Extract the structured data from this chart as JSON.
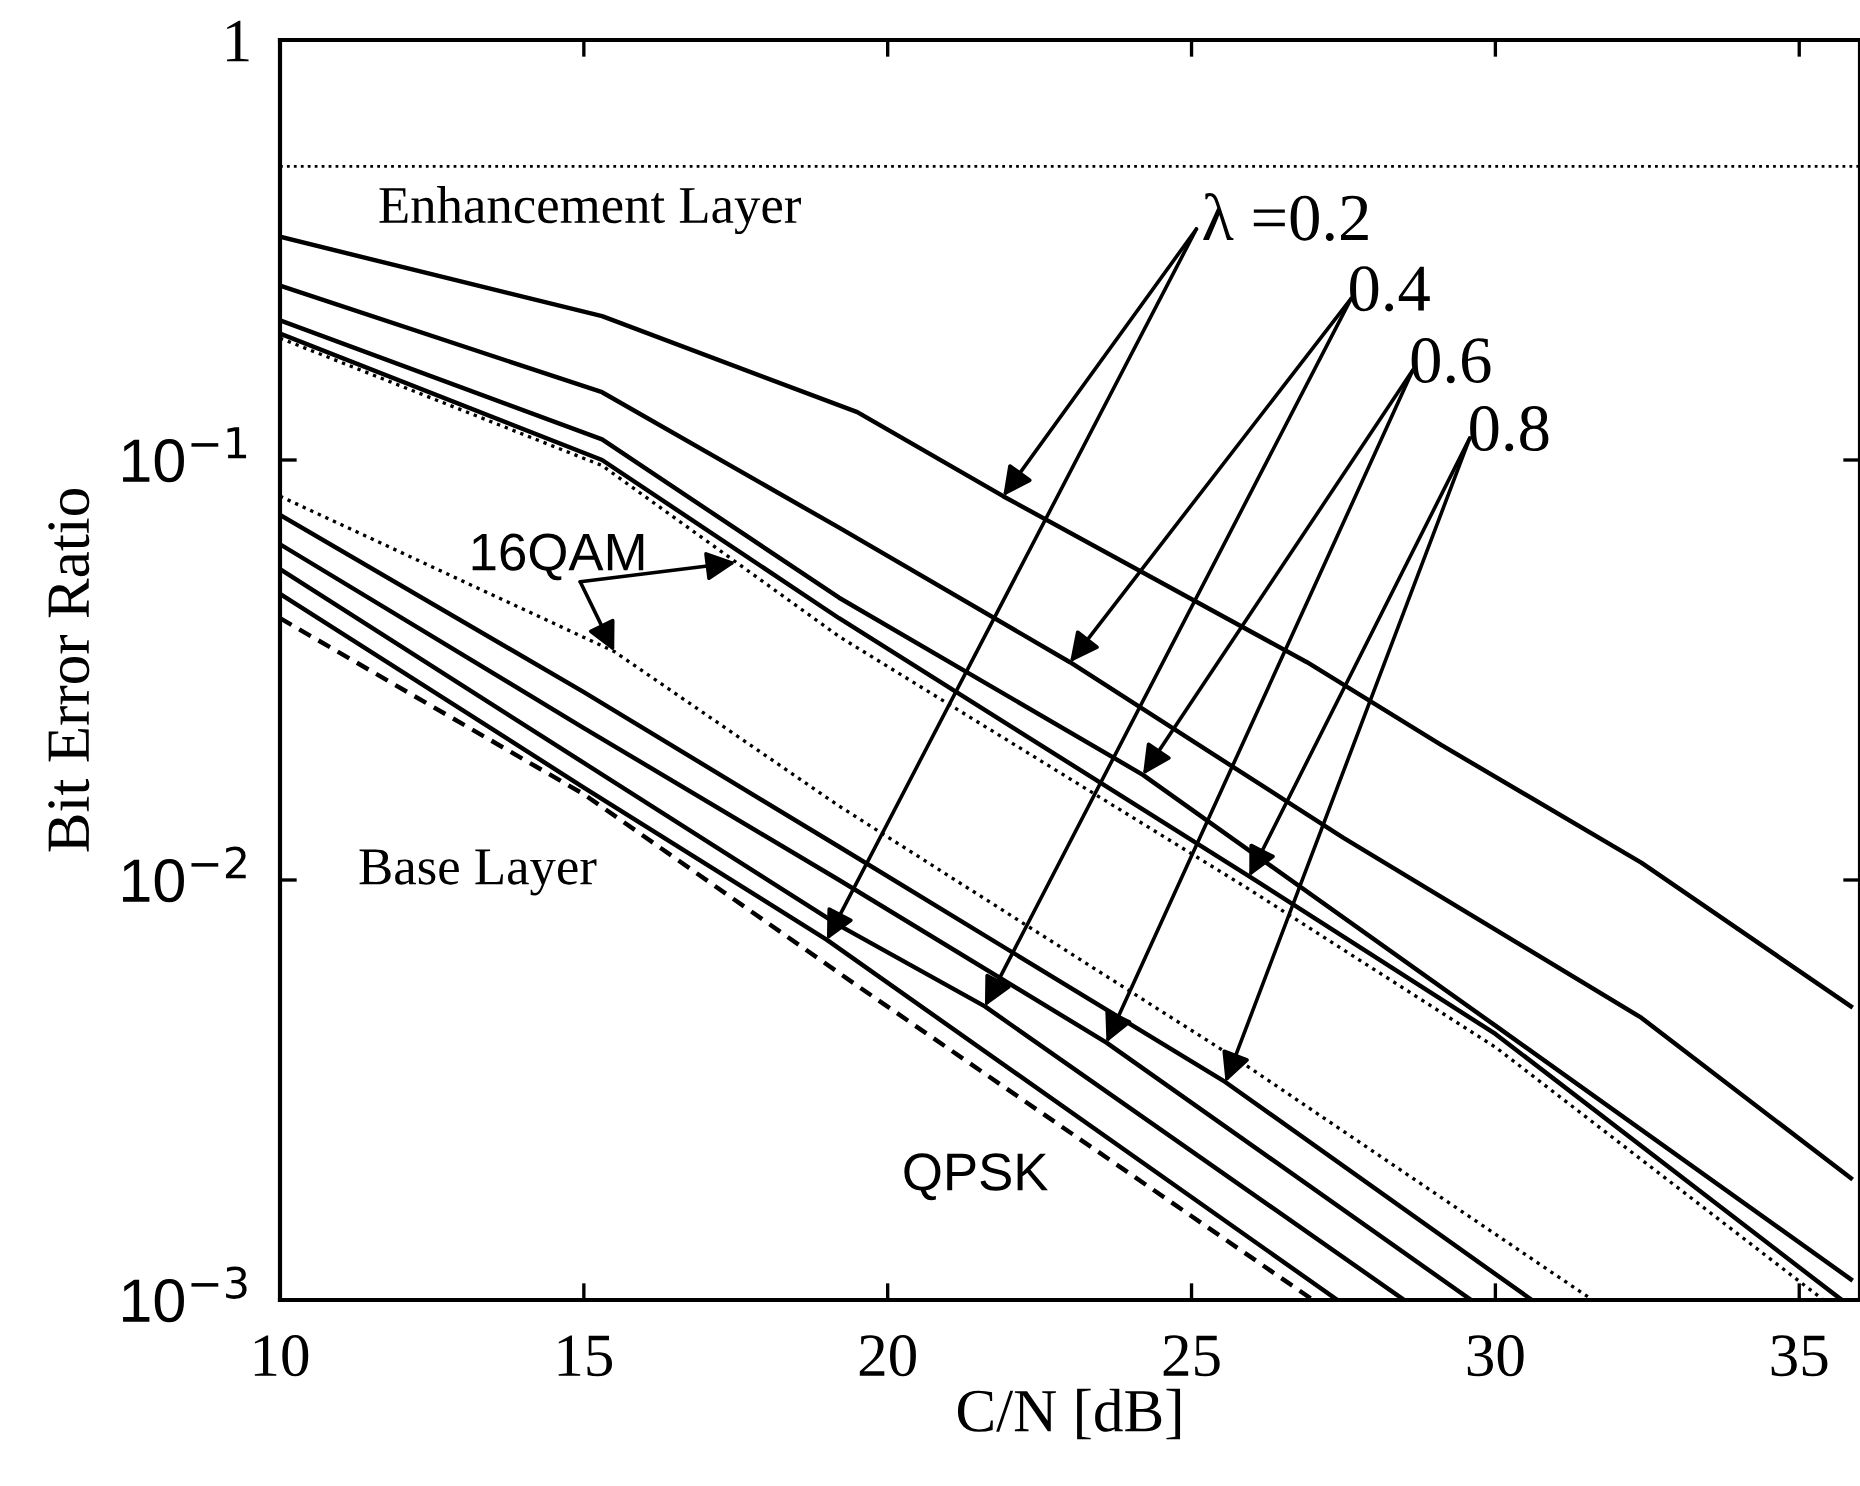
{
  "chart_data": {
    "type": "line",
    "xlabel": "C/N [dB]",
    "ylabel": "Bit Error Ratio",
    "log": "y",
    "xlim": [
      10,
      36
    ],
    "xticks": [
      10,
      15,
      20,
      25,
      30,
      35
    ],
    "ylim": [
      0.001,
      1
    ],
    "yticks": [
      {
        "value": 0.001,
        "label": "10$^{−3}$"
      },
      {
        "value": 0.01,
        "label": "10$^{−2}$"
      },
      {
        "value": 0.1,
        "label": "10$^{−1}$"
      },
      1
    ],
    "grid": false,
    "legend": false,
    "marker": "none",
    "series": [
      {
        "color": "#000000",
        "line_style": "solid",
        "x": [
          10,
          15.3,
          19.5,
          21.9,
          26.9,
          29.1,
          32.4,
          35.85
        ],
        "values": [
          0.34,
          0.22,
          0.13,
          0.082,
          0.033,
          0.021,
          0.011,
          0.005
        ]
      },
      {
        "color": "#000000",
        "line_style": "solid",
        "x": [
          10,
          15.3,
          19.2,
          23,
          27.5,
          32.4,
          35.85
        ],
        "values": [
          0.26,
          0.145,
          0.069,
          0.033,
          0.0126,
          0.0047,
          0.00195
        ]
      },
      {
        "color": "#000000",
        "line_style": "solid",
        "x": [
          10,
          15.3,
          19.2,
          24.2,
          30,
          35.85
        ],
        "values": [
          0.215,
          0.112,
          0.047,
          0.0178,
          0.0045,
          0.00112
        ]
      },
      {
        "color": "#000000",
        "line_style": "solid",
        "x": [
          10,
          15.3,
          19.2,
          25.95,
          30,
          35.7
        ],
        "values": [
          0.2,
          0.1,
          0.042,
          0.0102,
          0.0043,
          0.001
        ]
      },
      {
        "color": "#000000",
        "line_style": "dotted",
        "x": [
          10,
          15.3,
          19.2,
          25.95,
          30,
          35.4
        ],
        "values": [
          0.195,
          0.097,
          0.038,
          0.0095,
          0.004,
          0.001
        ]
      },
      {
        "color": "#000000",
        "line_style": "dotted",
        "x": [
          10,
          15.5,
          19.2,
          25.8,
          31.6
        ],
        "values": [
          0.082,
          0.035,
          0.015,
          0.0037,
          0.001
        ]
      },
      {
        "color": "#000000",
        "line_style": "solid",
        "x": [
          10,
          15,
          19.2,
          25.56,
          30.6
        ],
        "values": [
          0.074,
          0.028,
          0.012,
          0.0033,
          0.001
        ]
      },
      {
        "color": "#000000",
        "line_style": "solid",
        "x": [
          10,
          15,
          19.2,
          23.6,
          29.6
        ],
        "values": [
          0.063,
          0.023,
          0.01,
          0.0041,
          0.001
        ]
      },
      {
        "color": "#000000",
        "line_style": "solid",
        "x": [
          10,
          15,
          19.2,
          21.6,
          28.5
        ],
        "values": [
          0.055,
          0.019,
          0.0078,
          0.005,
          0.001
        ]
      },
      {
        "color": "#000000",
        "line_style": "solid",
        "x": [
          10,
          15,
          19,
          27.4
        ],
        "values": [
          0.048,
          0.0166,
          0.0072,
          0.001
        ]
      },
      {
        "color": "#000000",
        "line_style": "dashed",
        "x": [
          10,
          15,
          19.5,
          27
        ],
        "values": [
          0.042,
          0.016,
          0.0056,
          0.001
        ]
      }
    ],
    "ref_lines": [
      {
        "axis": "y",
        "value": 0.5,
        "line_style": "dotted",
        "color": "#000000"
      }
    ],
    "annotations": [
      {
        "text": "λ =0.2",
        "x": 21.9,
        "y": 0.082
      },
      {
        "text": "0.4",
        "x": 23,
        "y": 0.033
      },
      {
        "text": "0.6",
        "x": 24.2,
        "y": 0.0178
      },
      {
        "text": "0.8",
        "x": 25.95,
        "y": 0.0102
      },
      {
        "text": "16QAM",
        "x": 17.5,
        "y": 0.057
      },
      "Enhancement Layer",
      "Base Layer",
      "QPSK"
    ]
  }
}
